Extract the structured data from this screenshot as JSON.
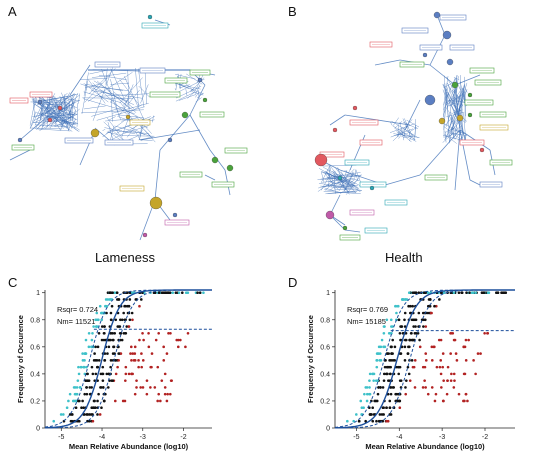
{
  "panels": {
    "a": {
      "letter": "A",
      "caption": "Lameness"
    },
    "b": {
      "letter": "B",
      "caption": "Health"
    },
    "c": {
      "letter": "C"
    },
    "d": {
      "letter": "D"
    }
  },
  "colors": {
    "edge": "#3d6fb6",
    "node_blue": "#5b7ec2",
    "node_red": "#e2585f",
    "node_green": "#4aa23b",
    "node_gold": "#c4a52a",
    "node_purple": "#c05aa8",
    "node_teal": "#2aa6b4",
    "black_point": "#111111",
    "red_point": "#b22222",
    "teal_point": "#3ec1c9",
    "fit_line": "#1c4f9c"
  },
  "chart_data": [
    {
      "type": "scatter",
      "panel": "C",
      "xlabel": "Mean Relative Abundance (log10)",
      "ylabel": "Frequency of Occurence",
      "xticks": [
        "-5",
        "-4",
        "-3",
        "-2"
      ],
      "yticks": [
        "0",
        "0.2",
        "0.4",
        "0.6",
        "0.8",
        "1"
      ],
      "xlim": [
        -5.4,
        -1.3
      ],
      "ylim": [
        0,
        1.02
      ],
      "annotations": [
        "Rsqr= 0.724",
        "Nm= 11521"
      ],
      "fit": {
        "midpoint": -4.0,
        "width": 0.22,
        "upper_offset": -0.3,
        "lower_offset": 0.3,
        "plateau": 0.73
      }
    },
    {
      "type": "scatter",
      "panel": "D",
      "xlabel": "Mean Relative Abundance (log10)",
      "ylabel": "Frequency of Occurence",
      "xticks": [
        "-5",
        "-4",
        "-3",
        "-2"
      ],
      "yticks": [
        "0",
        "0.2",
        "0.4",
        "0.6",
        "0.8",
        "1"
      ],
      "xlim": [
        -5.5,
        -1.3
      ],
      "ylim": [
        0,
        1.02
      ],
      "annotations": [
        "Rsqr= 0.769",
        "Nm= 15185"
      ],
      "fit": {
        "midpoint": -4.05,
        "width": 0.22,
        "upper_offset": -0.3,
        "lower_offset": 0.3,
        "plateau": 0.72
      }
    }
  ]
}
